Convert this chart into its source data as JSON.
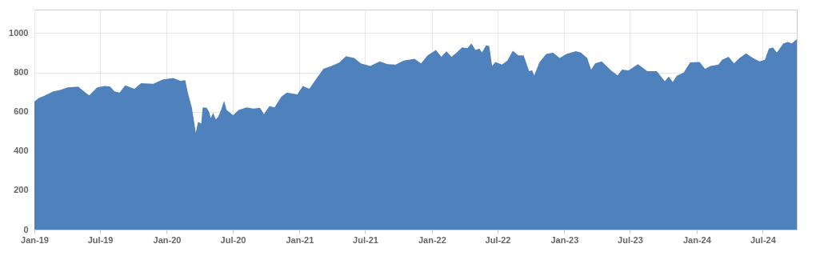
{
  "chart_data": {
    "type": "area",
    "x": [
      "2019-01-01",
      "2019-01-13",
      "2019-01-28",
      "2019-02-22",
      "2019-03-11",
      "2019-04-03",
      "2019-05-02",
      "2019-05-13",
      "2019-06-01",
      "2019-06-23",
      "2019-07-14",
      "2019-07-29",
      "2019-08-10",
      "2019-08-24",
      "2019-09-08",
      "2019-10-04",
      "2019-10-22",
      "2019-11-25",
      "2019-12-20",
      "2020-01-19",
      "2020-02-07",
      "2020-02-21",
      "2020-02-28",
      "2020-03-10",
      "2020-03-17",
      "2020-03-21",
      "2020-03-27",
      "2020-04-05",
      "2020-04-09",
      "2020-04-20",
      "2020-04-27",
      "2020-05-01",
      "2020-05-08",
      "2020-05-15",
      "2020-05-22",
      "2020-05-30",
      "2020-06-07",
      "2020-06-14",
      "2020-07-02",
      "2020-07-17",
      "2020-08-08",
      "2020-08-27",
      "2020-09-14",
      "2020-09-25",
      "2020-10-10",
      "2020-10-24",
      "2020-11-12",
      "2020-11-27",
      "2020-12-26",
      "2021-01-10",
      "2021-01-28",
      "2021-02-15",
      "2021-03-08",
      "2021-03-30",
      "2021-04-21",
      "2021-05-09",
      "2021-06-01",
      "2021-06-19",
      "2021-07-15",
      "2021-08-10",
      "2021-09-01",
      "2021-09-23",
      "2021-10-15",
      "2021-11-14",
      "2021-12-02",
      "2021-12-20",
      "2022-01-12",
      "2022-01-27",
      "2022-02-10",
      "2022-02-24",
      "2022-03-10",
      "2022-03-25",
      "2022-04-09",
      "2022-04-20",
      "2022-05-01",
      "2022-05-12",
      "2022-05-19",
      "2022-05-30",
      "2022-06-08",
      "2022-06-16",
      "2022-06-25",
      "2022-07-13",
      "2022-07-28",
      "2022-08-12",
      "2022-08-27",
      "2022-09-11",
      "2022-09-26",
      "2022-10-04",
      "2022-10-10",
      "2022-10-25",
      "2022-11-12",
      "2022-12-01",
      "2022-12-19",
      "2023-01-07",
      "2023-02-02",
      "2023-02-16",
      "2023-03-05",
      "2023-03-16",
      "2023-03-27",
      "2023-04-14",
      "2023-05-10",
      "2023-05-28",
      "2023-06-09",
      "2023-06-27",
      "2023-07-23",
      "2023-08-18",
      "2023-09-13",
      "2023-10-05",
      "2023-10-16",
      "2023-10-27",
      "2023-11-07",
      "2023-11-26",
      "2023-12-14",
      "2024-01-09",
      "2024-01-24",
      "2024-02-08",
      "2024-03-01",
      "2024-03-11",
      "2024-03-29",
      "2024-04-13",
      "2024-04-28",
      "2024-05-16",
      "2024-06-04",
      "2024-06-22",
      "2024-07-07",
      "2024-07-18",
      "2024-07-29",
      "2024-08-09",
      "2024-08-27",
      "2024-09-08",
      "2024-09-19",
      "2024-10-03"
    ],
    "series": [
      {
        "color": "#4f81bd",
        "values": [
          652,
          670,
          681,
          704,
          710,
          724,
          728,
          711,
          683,
          724,
          731,
          728,
          704,
          697,
          734,
          717,
          745,
          742,
          764,
          772,
          758,
          761,
          697,
          622,
          541,
          493,
          548,
          541,
          622,
          620,
          598,
          568,
          595,
          561,
          575,
          611,
          656,
          609,
          582,
          609,
          622,
          616,
          620,
          588,
          629,
          622,
          677,
          697,
          688,
          731,
          717,
          765,
          819,
          833,
          851,
          883,
          874,
          846,
          833,
          856,
          842,
          840,
          860,
          870,
          846,
          887,
          914,
          880,
          908,
          880,
          901,
          928,
          924,
          948,
          914,
          921,
          901,
          938,
          935,
          833,
          853,
          840,
          860,
          910,
          887,
          887,
          806,
          812,
          785,
          853,
          894,
          901,
          874,
          894,
          908,
          901,
          874,
          815,
          846,
          856,
          810,
          785,
          815,
          810,
          842,
          806,
          806,
          755,
          779,
          751,
          783,
          799,
          851,
          853,
          819,
          833,
          840,
          864,
          880,
          846,
          874,
          897,
          874,
          856,
          864,
          921,
          928,
          901,
          948,
          955,
          948,
          969
        ]
      }
    ],
    "xlim": [
      "2019-01-01",
      "2024-10-03"
    ],
    "xticks": [
      {
        "value": "2019-01",
        "label": "Jan-19"
      },
      {
        "value": "2019-07",
        "label": "Jul-19"
      },
      {
        "value": "2020-01",
        "label": "Jan-20"
      },
      {
        "value": "2020-07",
        "label": "Jul-20"
      },
      {
        "value": "2021-01",
        "label": "Jan-21"
      },
      {
        "value": "2021-07",
        "label": "Jul-21"
      },
      {
        "value": "2022-01",
        "label": "Jan-22"
      },
      {
        "value": "2022-07",
        "label": "Jul-22"
      },
      {
        "value": "2023-01",
        "label": "Jan-23"
      },
      {
        "value": "2023-07",
        "label": "Jul-23"
      },
      {
        "value": "2024-01",
        "label": "Jan-24"
      },
      {
        "value": "2024-07",
        "label": "Jul-24"
      }
    ],
    "ylim": [
      0,
      1120
    ],
    "yticks": [
      0,
      200,
      400,
      600,
      800,
      1000
    ],
    "grid": true
  }
}
